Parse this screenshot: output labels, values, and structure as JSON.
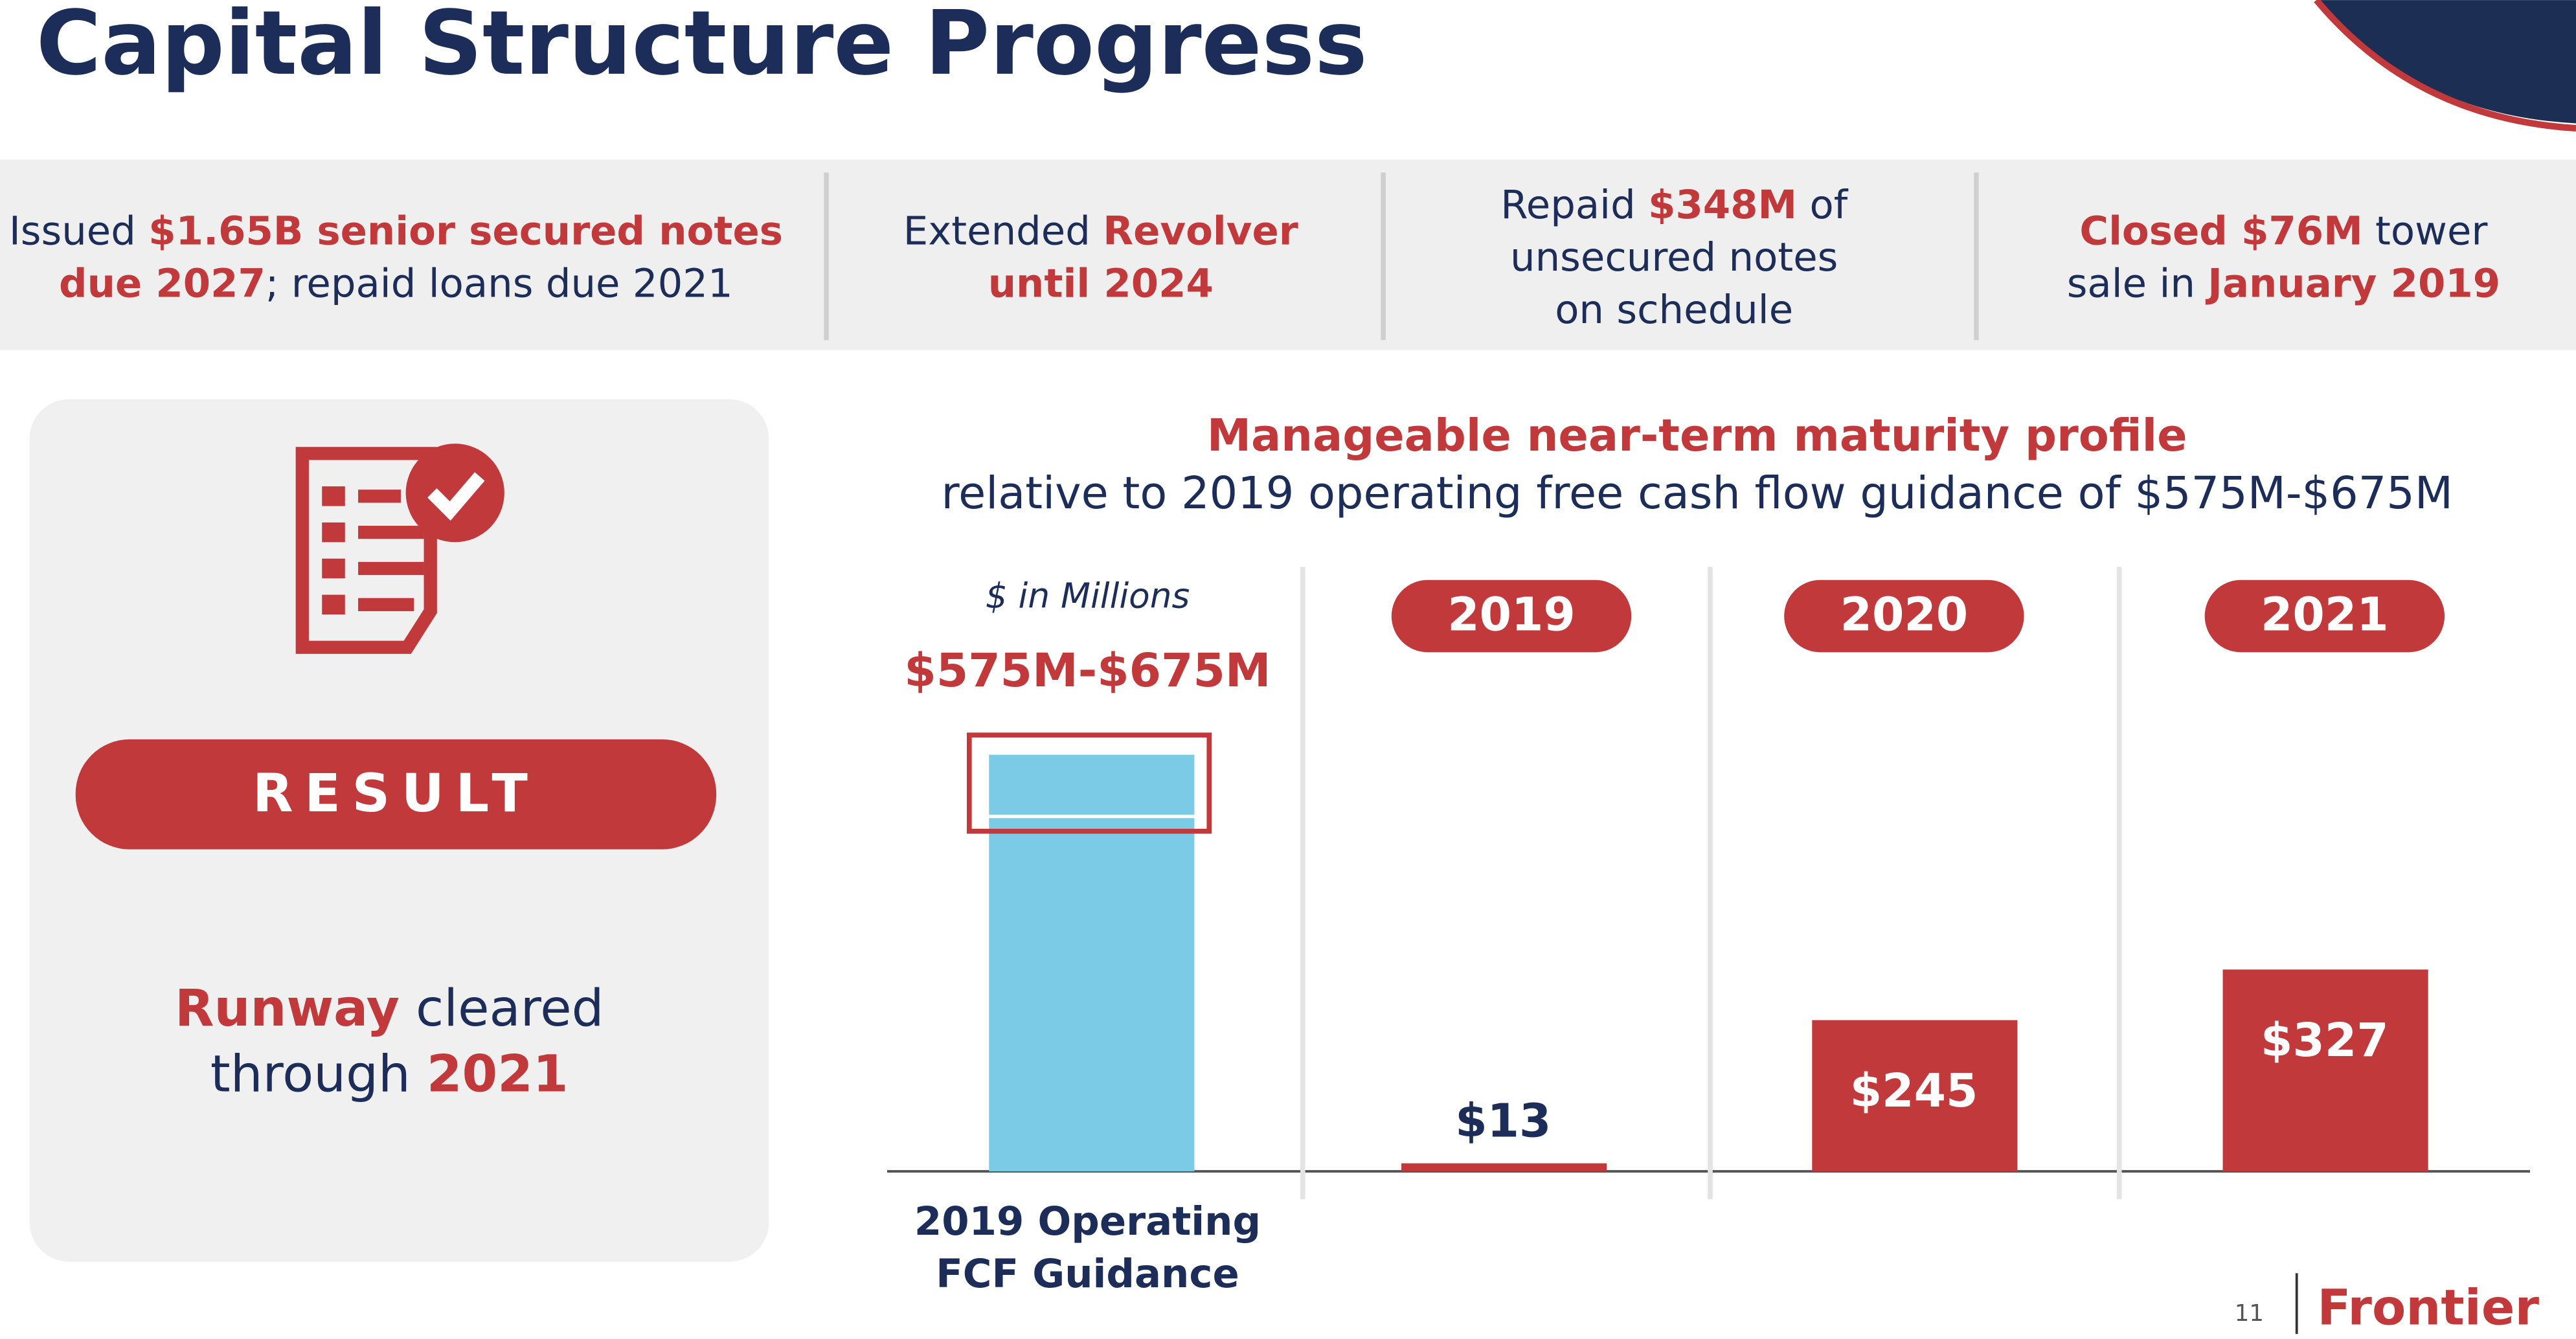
{
  "header": {
    "title": "Capital Structure Progress"
  },
  "highlights": [
    {
      "lines": [
        [
          {
            "text": "Issued ",
            "emphasis": false
          },
          {
            "text": "$1.65B senior secured notes",
            "emphasis": true
          }
        ],
        [
          {
            "text": "due 2027",
            "emphasis": true
          },
          {
            "text": "; repaid loans due 2021",
            "emphasis": false
          }
        ]
      ]
    },
    {
      "lines": [
        [
          {
            "text": "Extended ",
            "emphasis": false
          },
          {
            "text": "Revolver",
            "emphasis": true
          }
        ],
        [
          {
            "text": "until 2024",
            "emphasis": true
          }
        ]
      ]
    },
    {
      "lines": [
        [
          {
            "text": "Repaid ",
            "emphasis": false
          },
          {
            "text": "$348M",
            "emphasis": true
          },
          {
            "text": " of",
            "emphasis": false
          }
        ],
        [
          {
            "text": "unsecured notes",
            "emphasis": false
          }
        ],
        [
          {
            "text": "on schedule",
            "emphasis": false
          }
        ]
      ]
    },
    {
      "lines": [
        [
          {
            "text": "Closed $76M",
            "emphasis": true
          },
          {
            "text": " tower",
            "emphasis": false
          }
        ],
        [
          {
            "text": "sale in ",
            "emphasis": false
          },
          {
            "text": "January 2019",
            "emphasis": true
          }
        ]
      ]
    }
  ],
  "result": {
    "badge": "RESULT",
    "lines": [
      [
        {
          "text": "Runway",
          "emphasis": true
        },
        {
          "text": " cleared",
          "emphasis": false
        }
      ],
      [
        {
          "text": "through ",
          "emphasis": false
        },
        {
          "text": "2021",
          "emphasis": true
        }
      ]
    ]
  },
  "chart_data": {
    "type": "bar",
    "title": "Manageable near-term maturity profile",
    "subtitle": "relative to 2019 operating free cash flow guidance of $575M-$675M",
    "unit_note": "$ in Millions",
    "guidance": {
      "category": [
        "2019 Operating",
        "FCF Guidance"
      ],
      "low": 575,
      "high": 675,
      "label": "$575M-$675M",
      "color": "#7ccbe6"
    },
    "categories": [
      "2019",
      "2020",
      "2021"
    ],
    "values": [
      13,
      245,
      327
    ],
    "value_labels": [
      "$13",
      "$245",
      "$327"
    ],
    "color": "#c1393b",
    "ylim": [
      0,
      700
    ]
  },
  "footer": {
    "page": "11",
    "logo": "Frontier"
  }
}
